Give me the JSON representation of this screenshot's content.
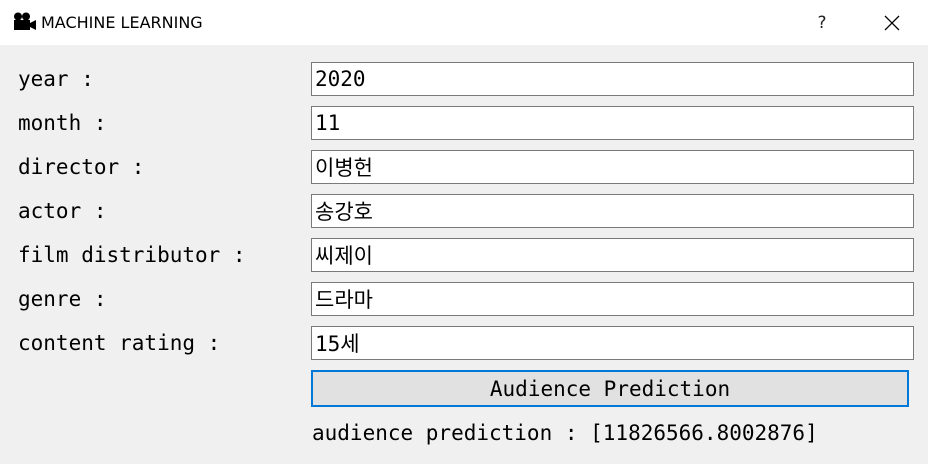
{
  "window": {
    "title": "MACHINE LEARNING",
    "icon": "movie-camera-icon",
    "help_label": "?",
    "close_icon": "close-icon"
  },
  "form": {
    "fields": [
      {
        "label": "year :",
        "value": "2020"
      },
      {
        "label": "month :",
        "value": "11"
      },
      {
        "label": "director :",
        "value": "이병헌"
      },
      {
        "label": "actor :",
        "value": "송강호"
      },
      {
        "label": "film distributor :",
        "value": "씨제이"
      },
      {
        "label": "genre :",
        "value": "드라마"
      },
      {
        "label": "content rating :",
        "value": "15세"
      }
    ],
    "button_label": "Audience Prediction",
    "result_text": "audience prediction : [11826566.8002876]"
  },
  "colors": {
    "button_focus_border": "#0078d7",
    "window_background": "#f0f0f0"
  }
}
